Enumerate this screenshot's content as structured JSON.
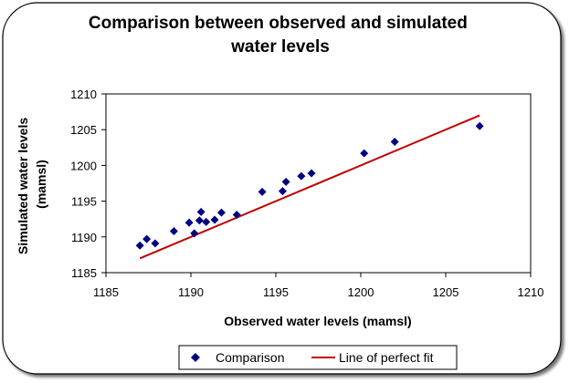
{
  "chart_data": {
    "type": "scatter",
    "title_lines": [
      "Comparison between observed and simulated",
      "water levels"
    ],
    "xlabel": "Observed water levels (mamsl)",
    "ylabel_lines": [
      "Simulated water levels",
      "(mamsl)"
    ],
    "xlim": [
      1185,
      1210
    ],
    "ylim": [
      1185,
      1210
    ],
    "x_ticks": [
      1185,
      1190,
      1195,
      1200,
      1205,
      1210
    ],
    "y_ticks": [
      1185,
      1190,
      1195,
      1200,
      1205,
      1210
    ],
    "grid": false,
    "legend_position": "bottom",
    "series": [
      {
        "name": "Comparison",
        "kind": "scatter",
        "color": "#000080",
        "marker": "diamond",
        "points": [
          [
            1187.0,
            1188.8
          ],
          [
            1187.4,
            1189.7
          ],
          [
            1187.9,
            1189.1
          ],
          [
            1189.0,
            1190.8
          ],
          [
            1189.9,
            1192.0
          ],
          [
            1190.2,
            1190.5
          ],
          [
            1190.5,
            1192.3
          ],
          [
            1190.6,
            1193.5
          ],
          [
            1190.9,
            1192.1
          ],
          [
            1191.4,
            1192.4
          ],
          [
            1191.8,
            1193.4
          ],
          [
            1192.7,
            1193.1
          ],
          [
            1194.2,
            1196.3
          ],
          [
            1195.4,
            1196.4
          ],
          [
            1195.6,
            1197.7
          ],
          [
            1196.5,
            1198.5
          ],
          [
            1197.1,
            1198.9
          ],
          [
            1200.2,
            1201.7
          ],
          [
            1202.0,
            1203.3
          ],
          [
            1207.0,
            1205.5
          ]
        ]
      },
      {
        "name": "Line of perfect fit",
        "kind": "line",
        "color": "#c00000",
        "points": [
          [
            1187.0,
            1187.0
          ],
          [
            1207.0,
            1207.0
          ]
        ]
      }
    ]
  }
}
